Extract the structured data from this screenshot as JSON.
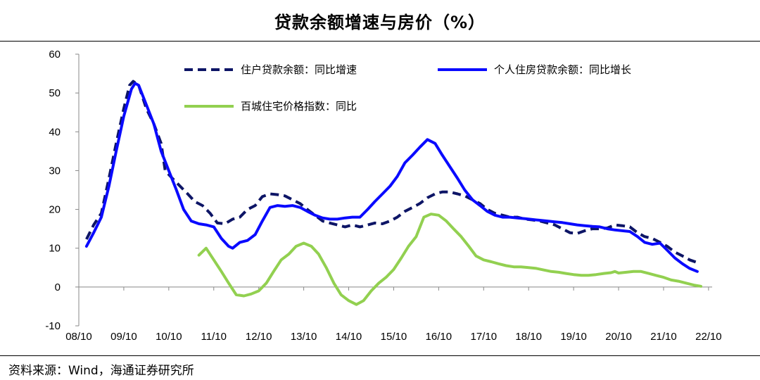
{
  "chart_data": {
    "type": "line",
    "title": "贷款余额增速与房价（%）",
    "source": "资料来源：Wind，海通证券研究所",
    "xlabel": "",
    "ylabel": "",
    "ylim": [
      -10,
      60
    ],
    "yticks": [
      -10,
      0,
      10,
      20,
      30,
      40,
      50,
      60
    ],
    "xlim": [
      2008.75,
      2022.83
    ],
    "xticks": [
      {
        "label": "08/10",
        "value": 2008.75
      },
      {
        "label": "09/10",
        "value": 2009.75
      },
      {
        "label": "10/10",
        "value": 2010.75
      },
      {
        "label": "11/10",
        "value": 2011.75
      },
      {
        "label": "12/10",
        "value": 2012.75
      },
      {
        "label": "13/10",
        "value": 2013.75
      },
      {
        "label": "14/10",
        "value": 2014.75
      },
      {
        "label": "15/10",
        "value": 2015.75
      },
      {
        "label": "16/10",
        "value": 2016.75
      },
      {
        "label": "17/10",
        "value": 2017.75
      },
      {
        "label": "18/10",
        "value": 2018.75
      },
      {
        "label": "19/10",
        "value": 2019.75
      },
      {
        "label": "20/10",
        "value": 2020.75
      },
      {
        "label": "21/10",
        "value": 2021.75
      },
      {
        "label": "22/10",
        "value": 2022.75
      }
    ],
    "legend_position": "top",
    "series": [
      {
        "name": "住户贷款余额：同比增速",
        "color": "#0d1566",
        "style": "dashed",
        "points": [
          [
            2008.92,
            12.3
          ],
          [
            2009.08,
            16
          ],
          [
            2009.25,
            19
          ],
          [
            2009.42,
            28
          ],
          [
            2009.58,
            37
          ],
          [
            2009.75,
            46
          ],
          [
            2009.88,
            52
          ],
          [
            2009.96,
            53
          ],
          [
            2010.08,
            52
          ],
          [
            2010.25,
            46
          ],
          [
            2010.42,
            42
          ],
          [
            2010.58,
            37
          ],
          [
            2010.67,
            30
          ],
          [
            2010.83,
            28
          ],
          [
            2011.0,
            26
          ],
          [
            2011.17,
            24
          ],
          [
            2011.33,
            22
          ],
          [
            2011.5,
            21
          ],
          [
            2011.67,
            19
          ],
          [
            2011.83,
            16.5
          ],
          [
            2012.0,
            16.3
          ],
          [
            2012.17,
            17.5
          ],
          [
            2012.33,
            18
          ],
          [
            2012.5,
            20
          ],
          [
            2012.67,
            21
          ],
          [
            2012.83,
            23.3
          ],
          [
            2013.0,
            24
          ],
          [
            2013.17,
            23.8
          ],
          [
            2013.33,
            23.5
          ],
          [
            2013.5,
            22.5
          ],
          [
            2013.67,
            21.5
          ],
          [
            2013.83,
            20
          ],
          [
            2014.0,
            18.5
          ],
          [
            2014.17,
            17
          ],
          [
            2014.33,
            16.5
          ],
          [
            2014.5,
            16
          ],
          [
            2014.67,
            15.5
          ],
          [
            2014.83,
            16
          ],
          [
            2015.0,
            15.5
          ],
          [
            2015.17,
            16
          ],
          [
            2015.33,
            16.5
          ],
          [
            2015.5,
            16.3
          ],
          [
            2015.67,
            17
          ],
          [
            2015.83,
            18
          ],
          [
            2016.0,
            19.5
          ],
          [
            2016.17,
            20.5
          ],
          [
            2016.33,
            21.5
          ],
          [
            2016.5,
            23
          ],
          [
            2016.67,
            24
          ],
          [
            2016.83,
            24.5
          ],
          [
            2017.0,
            24.5
          ],
          [
            2017.17,
            24
          ],
          [
            2017.33,
            23.5
          ],
          [
            2017.5,
            22.5
          ],
          [
            2017.67,
            21.5
          ],
          [
            2017.83,
            20
          ],
          [
            2018.0,
            19
          ],
          [
            2018.17,
            18.5
          ],
          [
            2018.33,
            18
          ],
          [
            2018.5,
            18
          ],
          [
            2018.67,
            17.5
          ],
          [
            2018.83,
            17.3
          ],
          [
            2019.0,
            17
          ],
          [
            2019.17,
            16.5
          ],
          [
            2019.33,
            16
          ],
          [
            2019.5,
            15
          ],
          [
            2019.67,
            14
          ],
          [
            2019.83,
            13.8
          ],
          [
            2020.0,
            14.5
          ],
          [
            2020.17,
            15
          ],
          [
            2020.33,
            15
          ],
          [
            2020.5,
            15.2
          ],
          [
            2020.67,
            16
          ],
          [
            2020.83,
            15.8
          ],
          [
            2021.0,
            15.5
          ],
          [
            2021.17,
            14
          ],
          [
            2021.33,
            13
          ],
          [
            2021.5,
            12.5
          ],
          [
            2021.67,
            11.5
          ],
          [
            2021.83,
            10.5
          ],
          [
            2022.0,
            9
          ],
          [
            2022.17,
            8
          ],
          [
            2022.33,
            7
          ],
          [
            2022.5,
            6.3
          ]
        ]
      },
      {
        "name": "个人住房贷款余额：同比增长",
        "color": "#0a0aff",
        "style": "solid",
        "points": [
          [
            2008.92,
            10.5
          ],
          [
            2009.08,
            14
          ],
          [
            2009.25,
            18
          ],
          [
            2009.42,
            26
          ],
          [
            2009.58,
            35
          ],
          [
            2009.75,
            44
          ],
          [
            2009.92,
            51
          ],
          [
            2010.0,
            52.5
          ],
          [
            2010.08,
            52
          ],
          [
            2010.25,
            47
          ],
          [
            2010.42,
            42
          ],
          [
            2010.58,
            35
          ],
          [
            2010.75,
            30
          ],
          [
            2010.92,
            25
          ],
          [
            2011.08,
            20
          ],
          [
            2011.25,
            17
          ],
          [
            2011.42,
            16.3
          ],
          [
            2011.58,
            16
          ],
          [
            2011.75,
            15.5
          ],
          [
            2011.92,
            12.5
          ],
          [
            2012.08,
            10.5
          ],
          [
            2012.17,
            10
          ],
          [
            2012.33,
            11.5
          ],
          [
            2012.5,
            12
          ],
          [
            2012.67,
            13.5
          ],
          [
            2012.83,
            17
          ],
          [
            2013.0,
            20.5
          ],
          [
            2013.17,
            21
          ],
          [
            2013.33,
            20.8
          ],
          [
            2013.5,
            21
          ],
          [
            2013.67,
            20.5
          ],
          [
            2013.83,
            19.5
          ],
          [
            2014.0,
            18.5
          ],
          [
            2014.17,
            17.8
          ],
          [
            2014.33,
            17.5
          ],
          [
            2014.5,
            17.5
          ],
          [
            2014.67,
            17.8
          ],
          [
            2014.83,
            18
          ],
          [
            2015.0,
            18
          ],
          [
            2015.17,
            20
          ],
          [
            2015.33,
            22
          ],
          [
            2015.5,
            24
          ],
          [
            2015.67,
            26
          ],
          [
            2015.83,
            28.5
          ],
          [
            2016.0,
            32
          ],
          [
            2016.17,
            34
          ],
          [
            2016.33,
            36
          ],
          [
            2016.5,
            38
          ],
          [
            2016.67,
            37
          ],
          [
            2016.83,
            34
          ],
          [
            2017.0,
            31
          ],
          [
            2017.17,
            28
          ],
          [
            2017.33,
            25
          ],
          [
            2017.5,
            22.5
          ],
          [
            2017.67,
            21
          ],
          [
            2017.83,
            19.5
          ],
          [
            2018.0,
            18.5
          ],
          [
            2018.17,
            18
          ],
          [
            2018.33,
            18
          ],
          [
            2018.5,
            17.8
          ],
          [
            2018.67,
            17.6
          ],
          [
            2018.83,
            17.4
          ],
          [
            2019.0,
            17.2
          ],
          [
            2019.17,
            17
          ],
          [
            2019.33,
            16.8
          ],
          [
            2019.5,
            16.6
          ],
          [
            2019.67,
            16.3
          ],
          [
            2019.83,
            16
          ],
          [
            2020.0,
            15.8
          ],
          [
            2020.17,
            15.6
          ],
          [
            2020.33,
            15.5
          ],
          [
            2020.5,
            15
          ],
          [
            2020.67,
            14.7
          ],
          [
            2020.83,
            14.5
          ],
          [
            2021.0,
            14.3
          ],
          [
            2021.17,
            13
          ],
          [
            2021.33,
            11.5
          ],
          [
            2021.5,
            11
          ],
          [
            2021.67,
            11.3
          ],
          [
            2021.83,
            9.5
          ],
          [
            2022.0,
            7.5
          ],
          [
            2022.17,
            6
          ],
          [
            2022.33,
            4.8
          ],
          [
            2022.5,
            4
          ]
        ]
      },
      {
        "name": "百城住宅价格指数：同比",
        "color": "#92d050",
        "style": "solid",
        "points": [
          [
            2011.42,
            8.2
          ],
          [
            2011.58,
            10
          ],
          [
            2011.75,
            7
          ],
          [
            2011.92,
            4
          ],
          [
            2012.08,
            1
          ],
          [
            2012.25,
            -2
          ],
          [
            2012.42,
            -2.3
          ],
          [
            2012.58,
            -1.8
          ],
          [
            2012.75,
            -1
          ],
          [
            2012.92,
            1
          ],
          [
            2013.08,
            4
          ],
          [
            2013.25,
            7
          ],
          [
            2013.42,
            8.5
          ],
          [
            2013.58,
            10.5
          ],
          [
            2013.75,
            11.3
          ],
          [
            2013.92,
            10.5
          ],
          [
            2014.08,
            8.5
          ],
          [
            2014.25,
            5
          ],
          [
            2014.42,
            1
          ],
          [
            2014.58,
            -2
          ],
          [
            2014.75,
            -3.5
          ],
          [
            2014.92,
            -4.5
          ],
          [
            2015.08,
            -3.5
          ],
          [
            2015.25,
            -1
          ],
          [
            2015.42,
            1
          ],
          [
            2015.58,
            2.5
          ],
          [
            2015.75,
            4.5
          ],
          [
            2015.92,
            7.5
          ],
          [
            2016.08,
            10.5
          ],
          [
            2016.25,
            13
          ],
          [
            2016.42,
            18
          ],
          [
            2016.58,
            18.8
          ],
          [
            2016.75,
            18.5
          ],
          [
            2016.92,
            17
          ],
          [
            2017.08,
            15
          ],
          [
            2017.25,
            13
          ],
          [
            2017.42,
            10.5
          ],
          [
            2017.58,
            8
          ],
          [
            2017.75,
            7
          ],
          [
            2017.92,
            6.5
          ],
          [
            2018.08,
            6
          ],
          [
            2018.25,
            5.5
          ],
          [
            2018.42,
            5.2
          ],
          [
            2018.58,
            5.2
          ],
          [
            2018.75,
            5
          ],
          [
            2018.92,
            4.8
          ],
          [
            2019.08,
            4.4
          ],
          [
            2019.25,
            4
          ],
          [
            2019.42,
            3.8
          ],
          [
            2019.58,
            3.5
          ],
          [
            2019.75,
            3.2
          ],
          [
            2019.92,
            3
          ],
          [
            2020.08,
            3
          ],
          [
            2020.25,
            3.2
          ],
          [
            2020.42,
            3.5
          ],
          [
            2020.58,
            3.7
          ],
          [
            2020.67,
            4
          ],
          [
            2020.75,
            3.6
          ],
          [
            2020.92,
            3.8
          ],
          [
            2021.08,
            4
          ],
          [
            2021.25,
            4
          ],
          [
            2021.42,
            3.5
          ],
          [
            2021.58,
            3
          ],
          [
            2021.75,
            2.5
          ],
          [
            2021.92,
            1.8
          ],
          [
            2022.08,
            1.5
          ],
          [
            2022.25,
            1
          ],
          [
            2022.42,
            0.5
          ],
          [
            2022.58,
            0.2
          ]
        ]
      }
    ]
  }
}
